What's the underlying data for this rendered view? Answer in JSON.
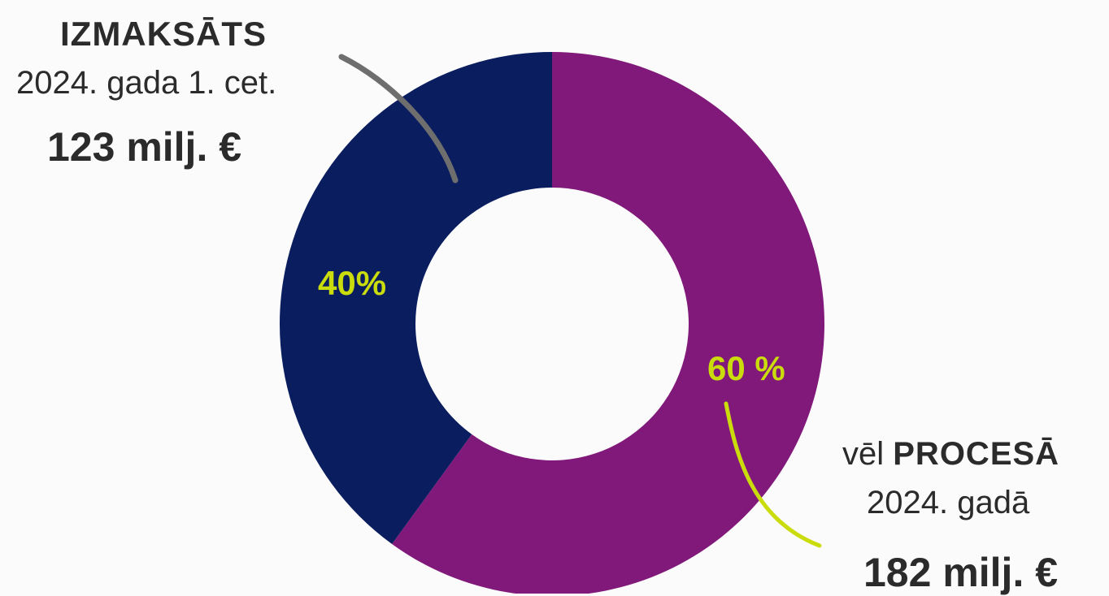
{
  "chart_data": {
    "type": "pie",
    "donut": true,
    "segments": [
      {
        "label": "vēl PROCESĀ 2024. gadā",
        "value": 60,
        "display": "60 %",
        "amount": "182 milj. €",
        "color": "#81197a"
      },
      {
        "label": "IZMAKSĀTS 2024. gada 1. cet.",
        "value": 40,
        "display": "40%",
        "amount": "123 milj. €",
        "color": "#0a1d5f"
      }
    ],
    "percent_label_color": "#cbdc0c",
    "connector_colors": {
      "paid": "#6e6e6e",
      "pending": "#cbdc0c"
    }
  },
  "labels": {
    "paid": {
      "heading": "IZMAKSĀTS",
      "period": "2024. gada 1. cet.",
      "amount": "123 milj. €",
      "percent": "40%"
    },
    "pending": {
      "prefix": "vēl ",
      "heading": "PROCESĀ",
      "period": "2024. gadā",
      "amount": "182 milj. €",
      "percent": "60 %"
    }
  }
}
